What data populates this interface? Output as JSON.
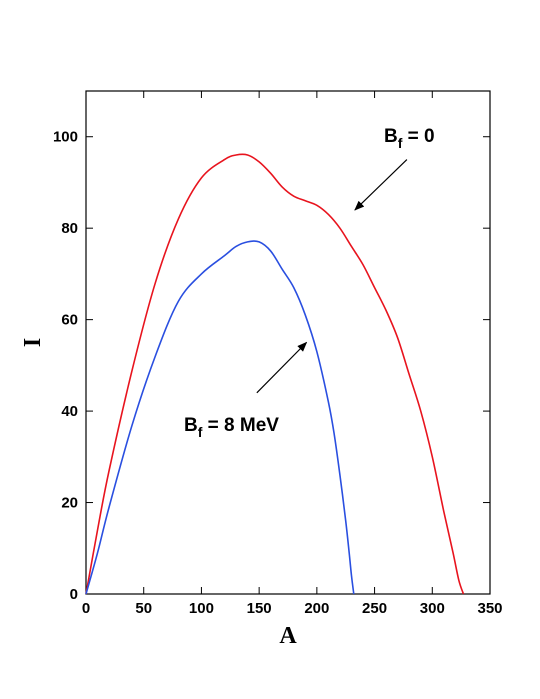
{
  "chart_data": {
    "type": "line",
    "title": "",
    "xlabel": "A",
    "ylabel": "I",
    "xlim": [
      0,
      350
    ],
    "ylim": [
      0,
      110
    ],
    "xticks": [
      "0",
      "50",
      "100",
      "150",
      "200",
      "250",
      "300",
      "350"
    ],
    "yticks": [
      "0",
      "20",
      "40",
      "60",
      "80",
      "100"
    ],
    "grid": false,
    "series": [
      {
        "name": "",
        "color": "#e8141e",
        "x": [
          0,
          10,
          20,
          40,
          60,
          80,
          100,
          120,
          130,
          140,
          150,
          160,
          170,
          180,
          190,
          200,
          210,
          220,
          230,
          240,
          250,
          260,
          270,
          280,
          290,
          300,
          310,
          318,
          323,
          327
        ],
        "y": [
          0,
          14,
          27,
          49,
          68,
          82,
          91,
          95,
          96,
          96,
          94.5,
          92,
          89,
          87,
          86,
          85,
          83,
          80,
          76,
          72,
          67,
          62,
          56,
          48,
          40,
          30,
          18,
          9,
          3,
          0
        ]
      },
      {
        "name": "",
        "color": "#2a4fe0",
        "x": [
          0,
          10,
          20,
          40,
          60,
          80,
          100,
          120,
          130,
          140,
          150,
          160,
          170,
          180,
          190,
          200,
          210,
          215,
          220,
          225,
          228,
          230,
          232
        ],
        "y": [
          0,
          9,
          19,
          37,
          52,
          64,
          70,
          74,
          76,
          77,
          77,
          75,
          71,
          67,
          61,
          53,
          42,
          35,
          26,
          16,
          9,
          4,
          0
        ]
      }
    ],
    "annotations": [
      {
        "text_main": "B",
        "text_sub": "f",
        "text_rest": " = 0",
        "arrow_from": [
          278,
          95
        ],
        "arrow_to": [
          233,
          84
        ]
      },
      {
        "text_main": "B",
        "text_sub": "f",
        "text_rest": " = 8 MeV",
        "arrow_from": [
          148,
          44
        ],
        "arrow_to": [
          191,
          55
        ]
      }
    ]
  }
}
